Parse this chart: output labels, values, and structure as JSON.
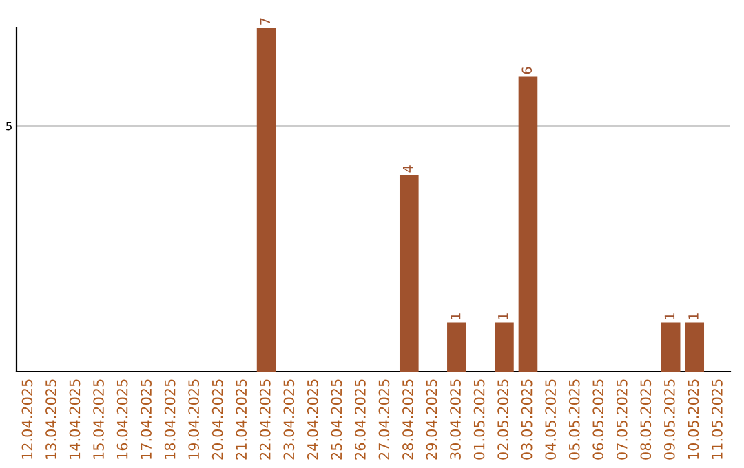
{
  "chart_data": {
    "type": "bar",
    "categories": [
      "12.04.2025",
      "13.04.2025",
      "14.04.2025",
      "15.04.2025",
      "16.04.2025",
      "17.04.2025",
      "18.04.2025",
      "19.04.2025",
      "20.04.2025",
      "21.04.2025",
      "22.04.2025",
      "23.04.2025",
      "24.04.2025",
      "25.04.2025",
      "26.04.2025",
      "27.04.2025",
      "28.04.2025",
      "29.04.2025",
      "30.04.2025",
      "01.05.2025",
      "02.05.2025",
      "03.05.2025",
      "04.05.2025",
      "05.05.2025",
      "06.05.2025",
      "07.05.2025",
      "08.05.2025",
      "09.05.2025",
      "10.05.2025",
      "11.05.2025"
    ],
    "values": [
      0,
      0,
      0,
      0,
      0,
      0,
      0,
      0,
      0,
      0,
      7,
      0,
      0,
      0,
      0,
      0,
      4,
      0,
      1,
      0,
      1,
      6,
      0,
      0,
      0,
      0,
      0,
      1,
      1,
      0
    ],
    "value_labels": [
      null,
      null,
      null,
      null,
      null,
      null,
      null,
      null,
      null,
      null,
      "7",
      null,
      null,
      null,
      null,
      null,
      "4",
      null,
      "1",
      null,
      "1",
      "6",
      null,
      null,
      null,
      null,
      null,
      "1",
      "1",
      null
    ],
    "color": "#a0522d",
    "ylim": [
      0,
      7.0
    ],
    "yticks": [
      5
    ],
    "grid": "y"
  }
}
